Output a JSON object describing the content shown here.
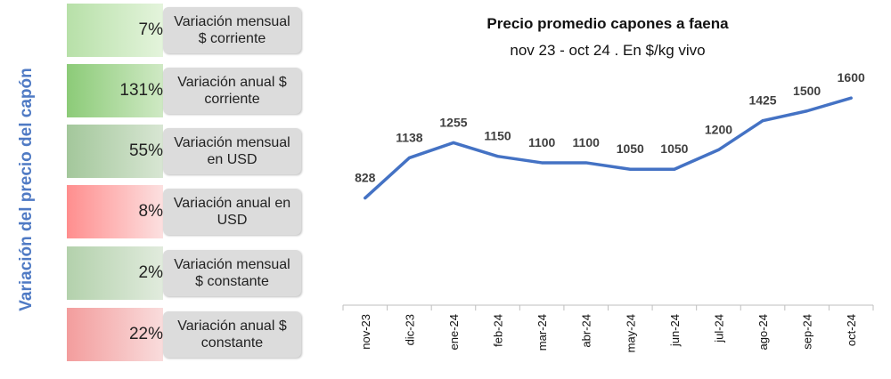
{
  "side_title": "Variación del precio del capón",
  "cards": [
    {
      "value": "7%",
      "label": "Variación mensual\n$ corriente",
      "color": "#b7e0a8"
    },
    {
      "value": "131%",
      "label": "Variación anual $\ncorriente",
      "color": "#8ccb78"
    },
    {
      "value": "55%",
      "label": "Variación mensual\nen USD",
      "color": "#a3c79b"
    },
    {
      "value": "8%",
      "label": "Variación anual en\nUSD",
      "color": "#ff8e8e"
    },
    {
      "value": "2%",
      "label": "Variación mensual\n$ constante",
      "color": "#b3d1ac"
    },
    {
      "value": "22%",
      "label": "Variación anual $\nconstante",
      "color": "#f39d9d"
    }
  ],
  "chart_data": {
    "type": "line",
    "title": "Precio promedio capones a faena",
    "subtitle": "nov 23 - oct 24 . En $/kg vivo",
    "categories": [
      "nov-23",
      "dic-23",
      "ene-24",
      "feb-24",
      "mar-24",
      "abr-24",
      "may-24",
      "jun-24",
      "jul-24",
      "ago-24",
      "sep-24",
      "oct-24"
    ],
    "series": [
      {
        "values": [
          828,
          1138,
          1255,
          1150,
          1100,
          1100,
          1050,
          1050,
          1200,
          1425,
          1500,
          1600
        ],
        "color": "#4472c4"
      }
    ],
    "data_labels": true,
    "xlabel": "",
    "ylabel": "",
    "ylim": [
      0,
      1900
    ],
    "grid": false,
    "legend": "none"
  }
}
